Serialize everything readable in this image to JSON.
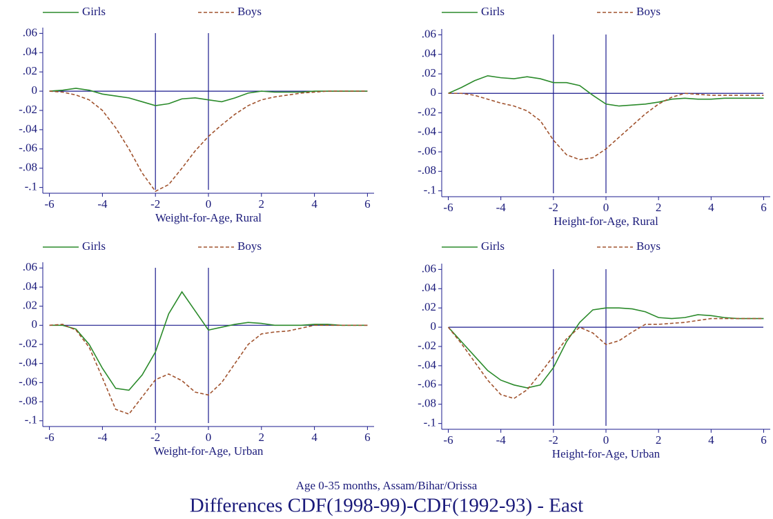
{
  "title": "Differences CDF(1998-99)-CDF(1992-93) - East",
  "subtitle": "Age 0-35 months, Assam/Bihar/Orissa",
  "chart_data": [
    {
      "type": "line",
      "xlabel": "Weight-for-Age, Rural",
      "x": [
        -6,
        -5.5,
        -5,
        -4.5,
        -4,
        -3.5,
        -3,
        -2.5,
        -2,
        -1.5,
        -1,
        -0.5,
        0,
        0.5,
        1,
        1.5,
        2,
        2.5,
        3,
        3.5,
        4,
        4.5,
        5,
        5.5,
        6
      ],
      "series": [
        {
          "name": "Girls",
          "color": "#2a8a2a",
          "dash": false,
          "values": [
            0,
            0.001,
            0.003,
            0.001,
            -0.003,
            -0.005,
            -0.007,
            -0.011,
            -0.015,
            -0.013,
            -0.008,
            -0.007,
            -0.009,
            -0.011,
            -0.007,
            -0.002,
            0,
            -0.001,
            -0.001,
            -0.001,
            0,
            0,
            0,
            0,
            0
          ]
        },
        {
          "name": "Boys",
          "color": "#a0522d",
          "dash": true,
          "values": [
            0,
            -0.001,
            -0.004,
            -0.009,
            -0.02,
            -0.038,
            -0.06,
            -0.085,
            -0.104,
            -0.097,
            -0.08,
            -0.062,
            -0.047,
            -0.035,
            -0.024,
            -0.015,
            -0.009,
            -0.006,
            -0.004,
            -0.002,
            -0.001,
            0,
            0,
            0,
            0
          ]
        }
      ],
      "xlim": [
        -6.25,
        6.25
      ],
      "ylim": [
        -0.106,
        0.066
      ],
      "xticks": [
        -6,
        -4,
        -2,
        0,
        2,
        4,
        6
      ],
      "yticks": [
        {
          "value": 0.06,
          "label": ".06"
        },
        {
          "value": 0.04,
          "label": ".04"
        },
        {
          "value": 0.02,
          "label": ".02"
        },
        0,
        {
          "value": -0.02,
          "label": "-.02"
        },
        {
          "value": -0.04,
          "label": "-.04"
        },
        {
          "value": -0.06,
          "label": "-.06"
        },
        {
          "value": -0.08,
          "label": "-.08"
        },
        {
          "value": -0.1,
          "label": "-.1"
        }
      ],
      "reference_lines": {
        "x": [
          -2,
          0
        ],
        "y": [
          0
        ]
      }
    },
    {
      "type": "line",
      "xlabel": "Height-for-Age, Rural",
      "x": [
        -6,
        -5.5,
        -5,
        -4.5,
        -4,
        -3.5,
        -3,
        -2.5,
        -2,
        -1.5,
        -1,
        -0.5,
        0,
        0.5,
        1,
        1.5,
        2,
        2.5,
        3,
        3.5,
        4,
        4.5,
        5,
        5.5,
        6
      ],
      "series": [
        {
          "name": "Girls",
          "color": "#2a8a2a",
          "dash": false,
          "values": [
            0,
            0.006,
            0.013,
            0.018,
            0.016,
            0.015,
            0.017,
            0.015,
            0.011,
            0.011,
            0.008,
            -0.002,
            -0.011,
            -0.013,
            -0.012,
            -0.011,
            -0.009,
            -0.006,
            -0.005,
            -0.006,
            -0.006,
            -0.005,
            -0.005,
            -0.005,
            -0.005
          ]
        },
        {
          "name": "Boys",
          "color": "#a0522d",
          "dash": true,
          "values": [
            0,
            0,
            -0.002,
            -0.006,
            -0.01,
            -0.013,
            -0.018,
            -0.028,
            -0.048,
            -0.063,
            -0.068,
            -0.066,
            -0.057,
            -0.045,
            -0.033,
            -0.021,
            -0.011,
            -0.004,
            0,
            -0.001,
            -0.002,
            -0.002,
            -0.002,
            -0.002,
            -0.002
          ]
        }
      ],
      "xlim": [
        -6.25,
        6.25
      ],
      "ylim": [
        -0.106,
        0.066
      ],
      "xticks": [
        -6,
        -4,
        -2,
        0,
        2,
        4,
        6
      ],
      "yticks": [
        {
          "value": 0.06,
          "label": ".06"
        },
        {
          "value": 0.04,
          "label": ".04"
        },
        {
          "value": 0.02,
          "label": ".02"
        },
        0,
        {
          "value": -0.02,
          "label": "-.02"
        },
        {
          "value": -0.04,
          "label": "-.04"
        },
        {
          "value": -0.06,
          "label": "-.06"
        },
        {
          "value": -0.08,
          "label": "-.08"
        },
        {
          "value": -0.1,
          "label": "-.1"
        }
      ],
      "reference_lines": {
        "x": [
          -2,
          0
        ],
        "y": [
          0
        ]
      }
    },
    {
      "type": "line",
      "xlabel": "Weight-for-Age, Urban",
      "x": [
        -6,
        -5.5,
        -5,
        -4.5,
        -4,
        -3.5,
        -3,
        -2.5,
        -2,
        -1.5,
        -1,
        -0.5,
        0,
        0.5,
        1,
        1.5,
        2,
        2.5,
        3,
        3.5,
        4,
        4.5,
        5,
        5.5,
        6
      ],
      "series": [
        {
          "name": "Girls",
          "color": "#2a8a2a",
          "dash": false,
          "values": [
            0,
            0,
            -0.004,
            -0.02,
            -0.045,
            -0.066,
            -0.068,
            -0.052,
            -0.028,
            0.012,
            0.035,
            0.015,
            -0.005,
            -0.002,
            0.001,
            0.003,
            0.002,
            0,
            0,
            0,
            0.001,
            0.001,
            0,
            0,
            0
          ]
        },
        {
          "name": "Boys",
          "color": "#a0522d",
          "dash": true,
          "values": [
            0,
            0.001,
            -0.005,
            -0.023,
            -0.055,
            -0.088,
            -0.093,
            -0.075,
            -0.057,
            -0.051,
            -0.058,
            -0.07,
            -0.073,
            -0.06,
            -0.04,
            -0.02,
            -0.009,
            -0.007,
            -0.006,
            -0.003,
            0,
            0,
            0,
            0,
            0
          ]
        }
      ],
      "xlim": [
        -6.25,
        6.25
      ],
      "ylim": [
        -0.106,
        0.066
      ],
      "xticks": [
        -6,
        -4,
        -2,
        0,
        2,
        4,
        6
      ],
      "yticks": [
        {
          "value": 0.06,
          "label": ".06"
        },
        {
          "value": 0.04,
          "label": ".04"
        },
        {
          "value": 0.02,
          "label": ".02"
        },
        0,
        {
          "value": -0.02,
          "label": "-.02"
        },
        {
          "value": -0.04,
          "label": "-.04"
        },
        {
          "value": -0.06,
          "label": "-.06"
        },
        {
          "value": -0.08,
          "label": "-.08"
        },
        {
          "value": -0.1,
          "label": "-.1"
        }
      ],
      "reference_lines": {
        "x": [
          -2,
          0
        ],
        "y": [
          0
        ]
      }
    },
    {
      "type": "line",
      "xlabel": "Height-for-Age, Urban",
      "x": [
        -6,
        -5.5,
        -5,
        -4.5,
        -4,
        -3.5,
        -3,
        -2.5,
        -2,
        -1.5,
        -1,
        -0.5,
        0,
        0.5,
        1,
        1.5,
        2,
        2.5,
        3,
        3.5,
        4,
        4.5,
        5,
        5.5,
        6
      ],
      "series": [
        {
          "name": "Girls",
          "color": "#2a8a2a",
          "dash": false,
          "values": [
            0,
            -0.015,
            -0.03,
            -0.045,
            -0.055,
            -0.06,
            -0.063,
            -0.06,
            -0.042,
            -0.015,
            0.005,
            0.018,
            0.02,
            0.02,
            0.019,
            0.016,
            0.01,
            0.009,
            0.01,
            0.013,
            0.012,
            0.01,
            0.009,
            0.009,
            0.009
          ]
        },
        {
          "name": "Boys",
          "color": "#a0522d",
          "dash": true,
          "values": [
            0,
            -0.017,
            -0.036,
            -0.055,
            -0.07,
            -0.074,
            -0.065,
            -0.048,
            -0.03,
            -0.012,
            0,
            -0.006,
            -0.018,
            -0.014,
            -0.005,
            0.003,
            0.003,
            0.004,
            0.005,
            0.007,
            0.009,
            0.009,
            0.009,
            0.009,
            0.009
          ]
        }
      ],
      "xlim": [
        -6.25,
        6.25
      ],
      "ylim": [
        -0.106,
        0.066
      ],
      "xticks": [
        -6,
        -4,
        -2,
        0,
        2,
        4,
        6
      ],
      "yticks": [
        {
          "value": 0.06,
          "label": ".06"
        },
        {
          "value": 0.04,
          "label": ".04"
        },
        {
          "value": 0.02,
          "label": ".02"
        },
        0,
        {
          "value": -0.02,
          "label": "-.02"
        },
        {
          "value": -0.04,
          "label": "-.04"
        },
        {
          "value": -0.06,
          "label": "-.06"
        },
        {
          "value": -0.08,
          "label": "-.08"
        },
        {
          "value": -0.1,
          "label": "-.1"
        }
      ],
      "reference_lines": {
        "x": [
          -2,
          0
        ],
        "y": [
          0
        ]
      }
    }
  ]
}
